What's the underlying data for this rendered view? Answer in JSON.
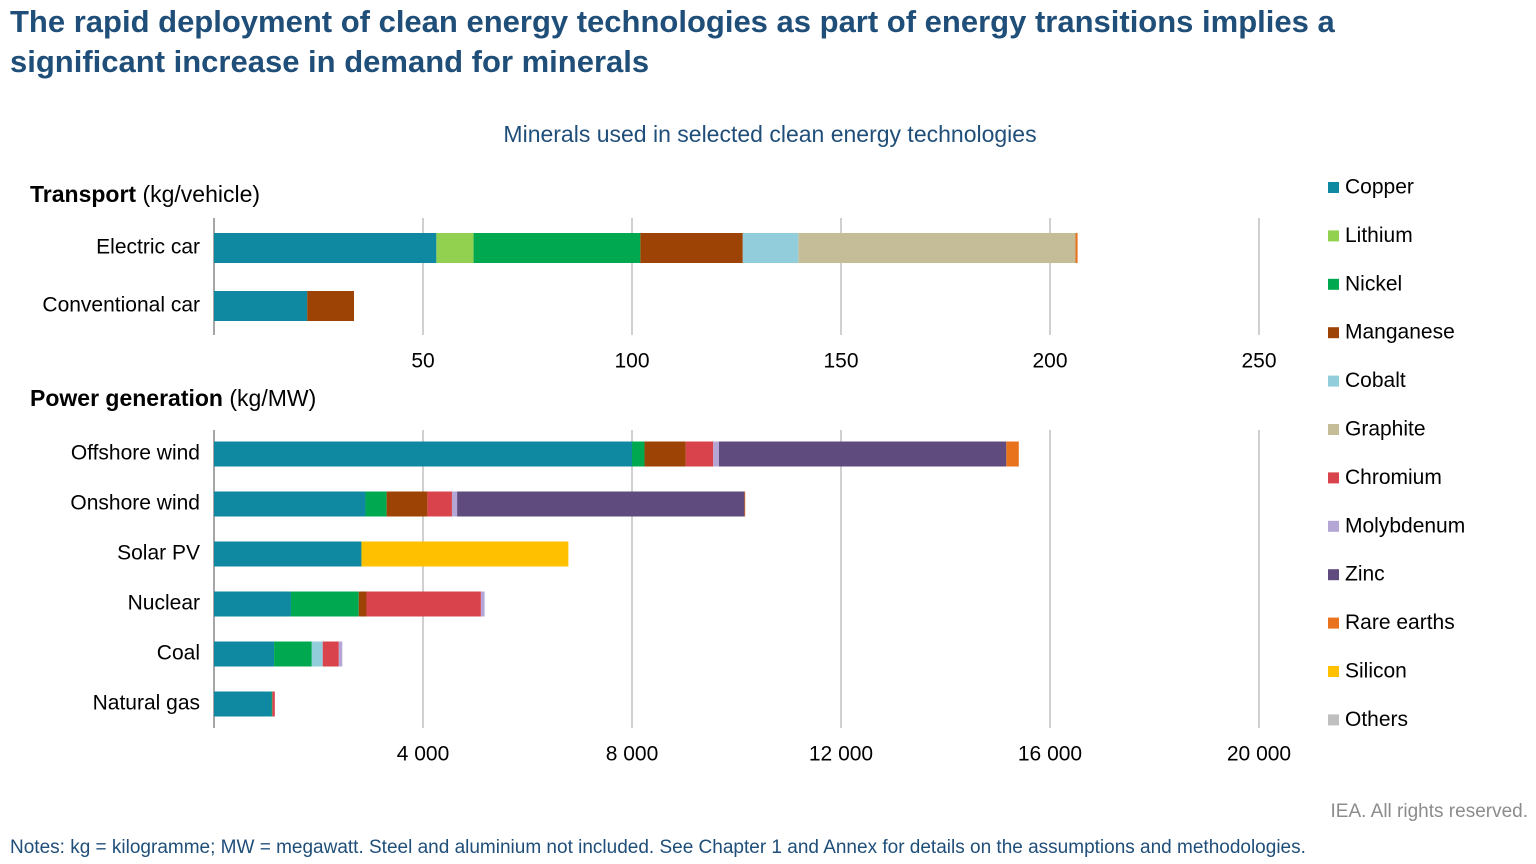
{
  "title": "The rapid deployment of clean energy technologies as part of energy transitions implies a significant increase in demand for minerals",
  "subtitle": "Minerals used in selected clean energy technologies",
  "credit": "IEA. All rights reserved.",
  "notes": "Notes: kg = kilogramme; MW = megawatt. Steel and aluminium not included. See Chapter 1 and Annex for details on the assumptions and methodologies.",
  "chart_data": [
    {
      "type": "hbar-stacked",
      "title": "Transport",
      "unit": "(kg/vehicle)",
      "categories": [
        "Electric car",
        "Conventional car"
      ],
      "xlim": [
        0,
        250
      ],
      "xticks": [
        50,
        100,
        150,
        200,
        250
      ],
      "grid": true,
      "series": [
        {
          "name": "Copper",
          "color": "#0f89a1",
          "values": [
            53.2,
            22.3
          ]
        },
        {
          "name": "Lithium",
          "color": "#92d050",
          "values": [
            8.9,
            0
          ]
        },
        {
          "name": "Nickel",
          "color": "#00a84f",
          "values": [
            39.9,
            0
          ]
        },
        {
          "name": "Manganese",
          "color": "#9c4305",
          "values": [
            24.5,
            11.2
          ]
        },
        {
          "name": "Cobalt",
          "color": "#92cddc",
          "values": [
            13.3,
            0
          ]
        },
        {
          "name": "Graphite",
          "color": "#c4bd97",
          "values": [
            66.3,
            0
          ]
        },
        {
          "name": "Chromium",
          "color": "#d9434b",
          "values": [
            0,
            0
          ]
        },
        {
          "name": "Molybdenum",
          "color": "#b4a7d6",
          "values": [
            0,
            0
          ]
        },
        {
          "name": "Zinc",
          "color": "#5f4b7e",
          "values": [
            0,
            0
          ]
        },
        {
          "name": "Rare earths",
          "color": "#e8731c",
          "values": [
            0.5,
            0
          ]
        },
        {
          "name": "Silicon",
          "color": "#ffc000",
          "values": [
            0,
            0
          ]
        },
        {
          "name": "Others",
          "color": "#bfbfbf",
          "values": [
            0,
            0
          ]
        }
      ]
    },
    {
      "type": "hbar-stacked",
      "title": "Power generation",
      "unit": "(kg/MW)",
      "categories": [
        "Offshore wind",
        "Onshore wind",
        "Solar PV",
        "Nuclear",
        "Coal",
        "Natural gas"
      ],
      "xlim": [
        0,
        20000
      ],
      "xticks": [
        {
          "value": 4000,
          "label": "4 000"
        },
        {
          "value": 8000,
          "label": "8 000"
        },
        {
          "value": 12000,
          "label": "12 000"
        },
        {
          "value": 16000,
          "label": "16 000"
        },
        {
          "value": 20000,
          "label": "20 000"
        }
      ],
      "grid": true,
      "series": [
        {
          "name": "Copper",
          "color": "#0f89a1",
          "values": [
            8000,
            2900,
            2822,
            1473,
            1150,
            1100
          ]
        },
        {
          "name": "Lithium",
          "color": "#92d050",
          "values": [
            0,
            0,
            0,
            0,
            0,
            0
          ]
        },
        {
          "name": "Nickel",
          "color": "#00a84f",
          "values": [
            240,
            404,
            0,
            1297,
            721,
            16
          ]
        },
        {
          "name": "Manganese",
          "color": "#9c4305",
          "values": [
            790,
            780,
            0,
            148,
            0,
            0
          ]
        },
        {
          "name": "Cobalt",
          "color": "#92cddc",
          "values": [
            0,
            0,
            0,
            0,
            210,
            0
          ]
        },
        {
          "name": "Graphite",
          "color": "#c4bd97",
          "values": [
            0,
            0,
            0,
            0,
            0,
            0
          ]
        },
        {
          "name": "Chromium",
          "color": "#d9434b",
          "values": [
            525,
            470,
            0,
            2190,
            308,
            48
          ]
        },
        {
          "name": "Molybdenum",
          "color": "#b4a7d6",
          "values": [
            109,
            99,
            0,
            70,
            66,
            0
          ]
        },
        {
          "name": "Zinc",
          "color": "#5f4b7e",
          "values": [
            5500,
            5500,
            0,
            0,
            0,
            0
          ]
        },
        {
          "name": "Rare earths",
          "color": "#e8731c",
          "values": [
            239,
            14,
            0,
            0,
            0,
            0
          ]
        },
        {
          "name": "Silicon",
          "color": "#ffc000",
          "values": [
            0,
            0,
            3960,
            0,
            0,
            0
          ]
        },
        {
          "name": "Others",
          "color": "#bfbfbf",
          "values": [
            0,
            0,
            0,
            0,
            0,
            0
          ]
        }
      ]
    }
  ]
}
